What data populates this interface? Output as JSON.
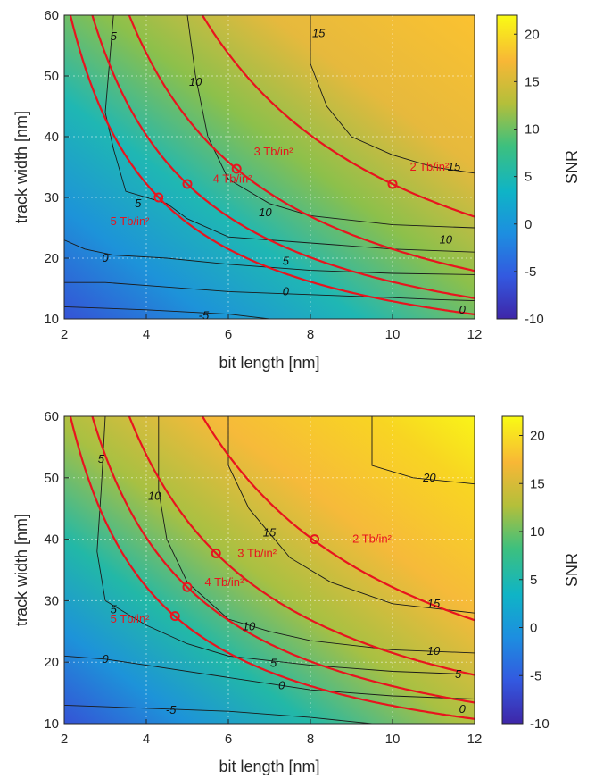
{
  "chart_data": [
    {
      "type": "heatmap",
      "xlabel": "bit length [nm]",
      "ylabel": "track width [nm]",
      "xlim": [
        2,
        12
      ],
      "ylim": [
        10,
        60
      ],
      "x_ticks": [
        "2",
        "4",
        "6",
        "8",
        "10",
        "12"
      ],
      "y_ticks": [
        "10",
        "20",
        "30",
        "40",
        "50",
        "60"
      ],
      "grid": true,
      "colorbar": {
        "label": "SNR",
        "range": [
          -10,
          22
        ],
        "ticks": [
          "-10",
          "-5",
          "0",
          "5",
          "10",
          "15",
          "20"
        ]
      },
      "contours": [
        {
          "level": "-5",
          "points": [
            [
              2,
              12
            ],
            [
              4,
              11.5
            ],
            [
              6,
              10.8
            ],
            [
              7,
              10
            ]
          ]
        },
        {
          "level": "0",
          "points": [
            [
              2,
              16
            ],
            [
              3,
              16
            ],
            [
              4,
              15.5
            ],
            [
              6,
              14.5
            ],
            [
              8,
              14
            ],
            [
              10,
              13.5
            ],
            [
              11,
              13.2
            ],
            [
              12,
              13
            ]
          ]
        },
        {
          "level": "0",
          "points": [
            [
              2,
              23
            ],
            [
              2.5,
              21.5
            ],
            [
              3.2,
              20.5
            ],
            [
              4.5,
              20
            ],
            [
              6,
              19
            ],
            [
              8,
              18
            ],
            [
              10,
              17.5
            ],
            [
              12,
              17.3
            ]
          ]
        },
        {
          "level": "5",
          "points": [
            [
              3.2,
              60
            ],
            [
              3.1,
              52
            ],
            [
              3.0,
              44
            ],
            [
              3.2,
              38
            ],
            [
              3.5,
              31
            ],
            [
              4.5,
              29
            ],
            [
              5.0,
              26.5
            ],
            [
              6.0,
              23.5
            ],
            [
              8.0,
              22.5
            ],
            [
              10.0,
              21.5
            ],
            [
              12.0,
              21
            ]
          ]
        },
        {
          "level": "10",
          "points": [
            [
              5.0,
              60
            ],
            [
              5.2,
              50
            ],
            [
              5.5,
              40
            ],
            [
              6.0,
              33
            ],
            [
              7.0,
              29
            ],
            [
              8.0,
              27
            ],
            [
              10.0,
              25.5
            ],
            [
              12.0,
              25
            ]
          ]
        },
        {
          "level": "15",
          "points": [
            [
              8.0,
              60
            ],
            [
              8.0,
              52
            ],
            [
              8.4,
              45
            ],
            [
              9.0,
              40
            ],
            [
              10.0,
              37
            ],
            [
              11.0,
              35
            ],
            [
              12.0,
              34
            ]
          ]
        }
      ],
      "contour_labels": [
        {
          "text": "5",
          "x": 3.2,
          "y": 56.5
        },
        {
          "text": "10",
          "x": 5.2,
          "y": 49
        },
        {
          "text": "15",
          "x": 8.2,
          "y": 57
        },
        {
          "text": "15",
          "x": 11.5,
          "y": 35
        },
        {
          "text": "10",
          "x": 6.9,
          "y": 27.5
        },
        {
          "text": "10",
          "x": 11.3,
          "y": 23
        },
        {
          "text": "5",
          "x": 3.8,
          "y": 29
        },
        {
          "text": "5",
          "x": 7.4,
          "y": 19.5
        },
        {
          "text": "0",
          "x": 3.0,
          "y": 20
        },
        {
          "text": "0",
          "x": 7.4,
          "y": 14.5
        },
        {
          "text": "0",
          "x": 11.7,
          "y": 11.5
        },
        {
          "text": "-5",
          "x": 5.4,
          "y": 10.5
        }
      ],
      "density_curves": [
        {
          "label": "2 Tb/in²",
          "k": 322,
          "marker": [
            10.0,
            32.2
          ]
        },
        {
          "label": "3 Tb/in²",
          "k": 215,
          "marker": [
            6.2,
            34.7
          ]
        },
        {
          "label": "4 Tb/in²",
          "k": 161,
          "marker": [
            5.0,
            32.2
          ]
        },
        {
          "label": "5 Tb/in²",
          "k": 129,
          "marker": [
            4.3,
            30.0
          ]
        }
      ],
      "density_label_pos": [
        {
          "x": 10.9,
          "y": 35.0
        },
        {
          "x": 7.1,
          "y": 37.5
        },
        {
          "x": 6.1,
          "y": 33.0
        },
        {
          "x": 3.6,
          "y": 26.0
        }
      ]
    },
    {
      "type": "heatmap",
      "xlabel": "bit length [nm]",
      "ylabel": "track width [nm]",
      "xlim": [
        2,
        12
      ],
      "ylim": [
        10,
        60
      ],
      "x_ticks": [
        "2",
        "4",
        "6",
        "8",
        "10",
        "12"
      ],
      "y_ticks": [
        "10",
        "20",
        "30",
        "40",
        "50",
        "60"
      ],
      "grid": true,
      "colorbar": {
        "label": "SNR",
        "range": [
          -10,
          22
        ],
        "ticks": [
          "-10",
          "-5",
          "0",
          "5",
          "10",
          "15",
          "20"
        ]
      },
      "contours": [
        {
          "level": "-5",
          "points": [
            [
              2,
              13
            ],
            [
              4,
              12.5
            ],
            [
              6,
              12
            ],
            [
              8,
              11
            ],
            [
              9.5,
              10
            ]
          ]
        },
        {
          "level": "0",
          "points": [
            [
              2,
              21
            ],
            [
              3,
              20.5
            ],
            [
              4,
              19.5
            ],
            [
              6,
              17.5
            ],
            [
              8,
              15.5
            ],
            [
              10,
              14.5
            ],
            [
              12,
              14
            ]
          ]
        },
        {
          "level": "5",
          "points": [
            [
              3.0,
              60
            ],
            [
              2.9,
              48
            ],
            [
              2.8,
              38
            ],
            [
              3.0,
              30
            ],
            [
              4.0,
              26
            ],
            [
              5.0,
              23
            ],
            [
              6.0,
              21
            ],
            [
              8.0,
              19.5
            ],
            [
              10.0,
              18.5
            ],
            [
              12.0,
              18
            ]
          ]
        },
        {
          "level": "10",
          "points": [
            [
              4.3,
              60
            ],
            [
              4.3,
              48
            ],
            [
              4.5,
              40
            ],
            [
              5.0,
              33
            ],
            [
              6.0,
              27
            ],
            [
              7.0,
              25
            ],
            [
              8.0,
              23.5
            ],
            [
              10.0,
              22
            ],
            [
              12.0,
              21.5
            ]
          ]
        },
        {
          "level": "15",
          "points": [
            [
              6.0,
              60
            ],
            [
              6.0,
              52
            ],
            [
              6.5,
              45
            ],
            [
              7.5,
              37
            ],
            [
              8.5,
              33
            ],
            [
              10.0,
              29.5
            ],
            [
              12.0,
              28
            ]
          ]
        },
        {
          "level": "20",
          "points": [
            [
              9.5,
              60
            ],
            [
              9.5,
              52
            ],
            [
              10.5,
              50
            ],
            [
              12.0,
              49
            ]
          ]
        }
      ],
      "contour_labels": [
        {
          "text": "5",
          "x": 2.9,
          "y": 53
        },
        {
          "text": "10",
          "x": 4.2,
          "y": 47
        },
        {
          "text": "15",
          "x": 7.0,
          "y": 41
        },
        {
          "text": "20",
          "x": 10.9,
          "y": 50
        },
        {
          "text": "15",
          "x": 11.0,
          "y": 29.5
        },
        {
          "text": "10",
          "x": 6.5,
          "y": 25.8
        },
        {
          "text": "10",
          "x": 11.0,
          "y": 21.8
        },
        {
          "text": "5",
          "x": 3.2,
          "y": 28.5
        },
        {
          "text": "5",
          "x": 7.1,
          "y": 19.8
        },
        {
          "text": "5",
          "x": 11.6,
          "y": 18.0
        },
        {
          "text": "0",
          "x": 3.0,
          "y": 20.5
        },
        {
          "text": "0",
          "x": 7.3,
          "y": 16.2
        },
        {
          "text": "0",
          "x": 11.7,
          "y": 12.3
        },
        {
          "text": "-5",
          "x": 4.6,
          "y": 12.2
        }
      ],
      "density_curves": [
        {
          "label": "2 Tb/in²",
          "k": 322,
          "marker": [
            8.1,
            40.0
          ]
        },
        {
          "label": "3 Tb/in²",
          "k": 215,
          "marker": [
            5.7,
            37.7
          ]
        },
        {
          "label": "4 Tb/in²",
          "k": 161,
          "marker": [
            5.0,
            32.2
          ]
        },
        {
          "label": "5 Tb/in²",
          "k": 129,
          "marker": [
            4.7,
            27.5
          ]
        }
      ],
      "density_label_pos": [
        {
          "x": 9.5,
          "y": 40.0
        },
        {
          "x": 6.7,
          "y": 37.7
        },
        {
          "x": 5.9,
          "y": 33.0
        },
        {
          "x": 3.6,
          "y": 27.0
        }
      ]
    }
  ]
}
